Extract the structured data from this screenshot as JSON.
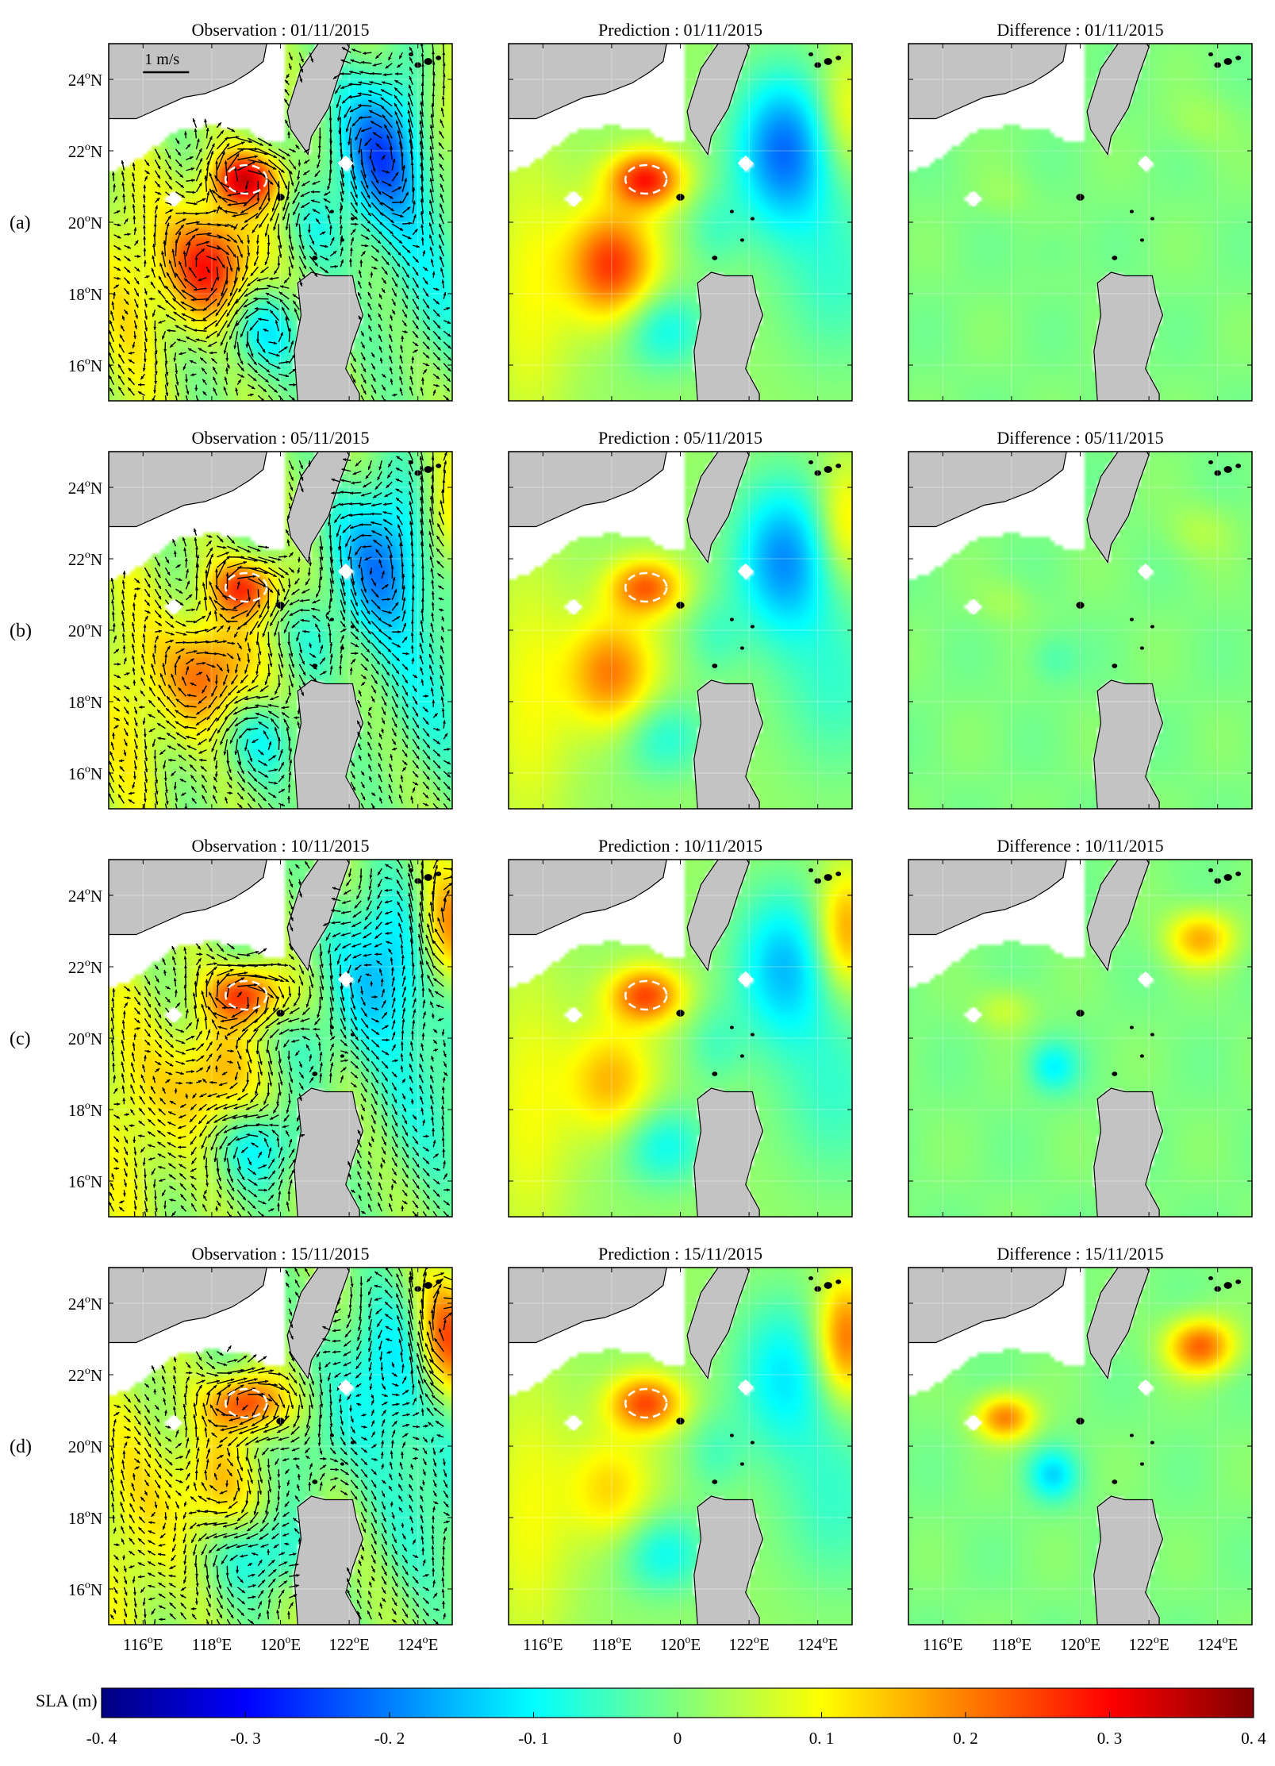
{
  "chart_data": {
    "type": "heatmap",
    "layout": "4x3 grid of SLA maps with velocity vectors on observation panels",
    "column_types": [
      "Observation",
      "Prediction",
      "Difference"
    ],
    "title_separator": " : ",
    "rows": [
      {
        "label": "(a)",
        "date": "01/11/2015"
      },
      {
        "label": "(b)",
        "date": "05/11/2015"
      },
      {
        "label": "(c)",
        "date": "10/11/2015"
      },
      {
        "label": "(d)",
        "date": "15/11/2015"
      }
    ],
    "lon_range": [
      115,
      125
    ],
    "lat_range": [
      15,
      25
    ],
    "x_ticks": [
      116,
      118,
      120,
      122,
      124
    ],
    "y_ticks": [
      16,
      18,
      20,
      22,
      24
    ],
    "x_tick_labels": [
      "116°E",
      "118°E",
      "120°E",
      "122°E",
      "124°E"
    ],
    "y_tick_labels": [
      "16°N",
      "18°N",
      "20°N",
      "22°N",
      "24°N"
    ],
    "grid": true,
    "scale_label": "1 m/s",
    "colorbar": {
      "label": "SLA (m)",
      "range": [
        -0.4,
        0.4
      ],
      "ticks": [
        -0.4,
        -0.3,
        -0.2,
        -0.1,
        0,
        0.1,
        0.2,
        0.3,
        0.4
      ],
      "tick_labels": [
        "-0. 4",
        "-0. 3",
        "-0. 2",
        "-0. 1",
        "0",
        "0. 1",
        "0. 2",
        "0. 3",
        "0. 4"
      ],
      "colormap": "jet",
      "colors": [
        "#00007f",
        "#0000ff",
        "#007fff",
        "#00ffff",
        "#7fff7f",
        "#ffff00",
        "#ff7f00",
        "#ff0000",
        "#7f0000"
      ]
    },
    "land_color": "#c3c3c3",
    "field_features": [
      {
        "name": "warm eddy west of Luzon Strait",
        "lon": 119.0,
        "lat": 21.2,
        "sla": [
          0.28,
          0.22,
          0.24,
          0.24
        ]
      },
      {
        "name": "warm anomaly off Luzon west",
        "lon": 118.0,
        "lat": 18.8,
        "sla": [
          0.26,
          0.2,
          0.15,
          0.12
        ]
      },
      {
        "name": "cold eddy east of Taiwan",
        "lon": 123.0,
        "lat": 22.0,
        "sla": [
          -0.25,
          -0.22,
          -0.18,
          -0.14
        ]
      },
      {
        "name": "warm anomaly northeast",
        "lon": 124.8,
        "lat": 23.0,
        "sla": [
          0.1,
          0.12,
          0.18,
          0.22
        ]
      },
      {
        "name": "cold patch west of Luzon",
        "lon": 119.5,
        "lat": 17.0,
        "sla": [
          -0.12,
          -0.1,
          -0.12,
          -0.12
        ]
      }
    ],
    "difference_features": [
      {
        "name": "difference warm patch northeast",
        "lon": 123.5,
        "lat": 22.8,
        "sla": [
          0.03,
          0.04,
          0.16,
          0.22
        ]
      },
      {
        "name": "difference warm eddy",
        "lon": 117.8,
        "lat": 20.8,
        "sla": [
          0.02,
          0.03,
          0.06,
          0.2
        ]
      },
      {
        "name": "difference cold patch",
        "lon": 119.2,
        "lat": 19.2,
        "sla": [
          -0.02,
          -0.04,
          -0.1,
          -0.12
        ]
      }
    ]
  }
}
